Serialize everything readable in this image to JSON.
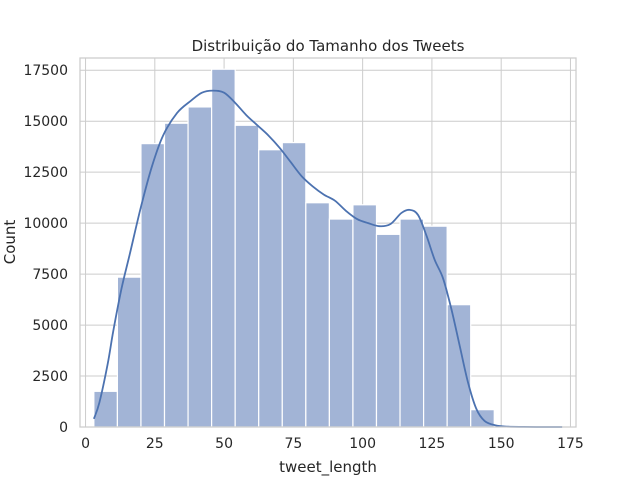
{
  "chart_data": {
    "type": "bar",
    "title": "Distribuição do Tamanho dos Tweets",
    "xlabel": "tweet_length",
    "ylabel": "Count",
    "xlim": [
      -2,
      177
    ],
    "ylim": [
      0,
      18100
    ],
    "xticks": [
      0,
      25,
      50,
      75,
      100,
      125,
      150,
      175
    ],
    "yticks": [
      0,
      2500,
      5000,
      7500,
      10000,
      12500,
      15000,
      17500
    ],
    "x_tick_labels": [
      "0",
      "25",
      "50",
      "75",
      "100",
      "125",
      "150",
      "175"
    ],
    "y_tick_labels": [
      "0",
      "2500",
      "5000",
      "7500",
      "10000",
      "12500",
      "15000",
      "17500"
    ],
    "grid": true,
    "bins": [
      {
        "x0": 3.0,
        "x1": 11.5,
        "count": 1750
      },
      {
        "x0": 11.5,
        "x1": 20.0,
        "count": 7350
      },
      {
        "x0": 20.0,
        "x1": 28.5,
        "count": 13900
      },
      {
        "x0": 28.5,
        "x1": 37.0,
        "count": 14900
      },
      {
        "x0": 37.0,
        "x1": 45.5,
        "count": 15700
      },
      {
        "x0": 45.5,
        "x1": 54.0,
        "count": 17550
      },
      {
        "x0": 54.0,
        "x1": 62.5,
        "count": 14800
      },
      {
        "x0": 62.5,
        "x1": 71.0,
        "count": 13600
      },
      {
        "x0": 71.0,
        "x1": 79.5,
        "count": 13950
      },
      {
        "x0": 79.5,
        "x1": 88.0,
        "count": 11000
      },
      {
        "x0": 88.0,
        "x1": 96.5,
        "count": 10200
      },
      {
        "x0": 96.5,
        "x1": 105.0,
        "count": 10900
      },
      {
        "x0": 105.0,
        "x1": 113.5,
        "count": 9450
      },
      {
        "x0": 113.5,
        "x1": 122.0,
        "count": 10200
      },
      {
        "x0": 122.0,
        "x1": 130.5,
        "count": 9850
      },
      {
        "x0": 130.5,
        "x1": 139.0,
        "count": 6000
      },
      {
        "x0": 139.0,
        "x1": 147.5,
        "count": 850
      }
    ],
    "kde": {
      "x": [
        3,
        5,
        8,
        10,
        13,
        16,
        20,
        24,
        28,
        33,
        38,
        42,
        46,
        50,
        54,
        58,
        62,
        66,
        70,
        74,
        78,
        82,
        86,
        90,
        94,
        98,
        102,
        106,
        110,
        114,
        117,
        120,
        123,
        126,
        129,
        132,
        135,
        138,
        141,
        144,
        148,
        152,
        158,
        165,
        172
      ],
      "y": [
        400,
        1200,
        3100,
        4700,
        6800,
        8500,
        10800,
        12800,
        14300,
        15400,
        16000,
        16400,
        16500,
        16400,
        15900,
        15300,
        14800,
        14300,
        13700,
        13000,
        12300,
        11800,
        11400,
        11100,
        10600,
        10200,
        10000,
        9850,
        9950,
        10500,
        10650,
        10400,
        9400,
        8200,
        7300,
        5800,
        4000,
        2200,
        900,
        300,
        80,
        20,
        5,
        0,
        0
      ]
    },
    "colors": {
      "bar_fill": "#a2b4d6",
      "bar_edge": "#ffffff",
      "kde_line": "#4c72b0"
    }
  }
}
